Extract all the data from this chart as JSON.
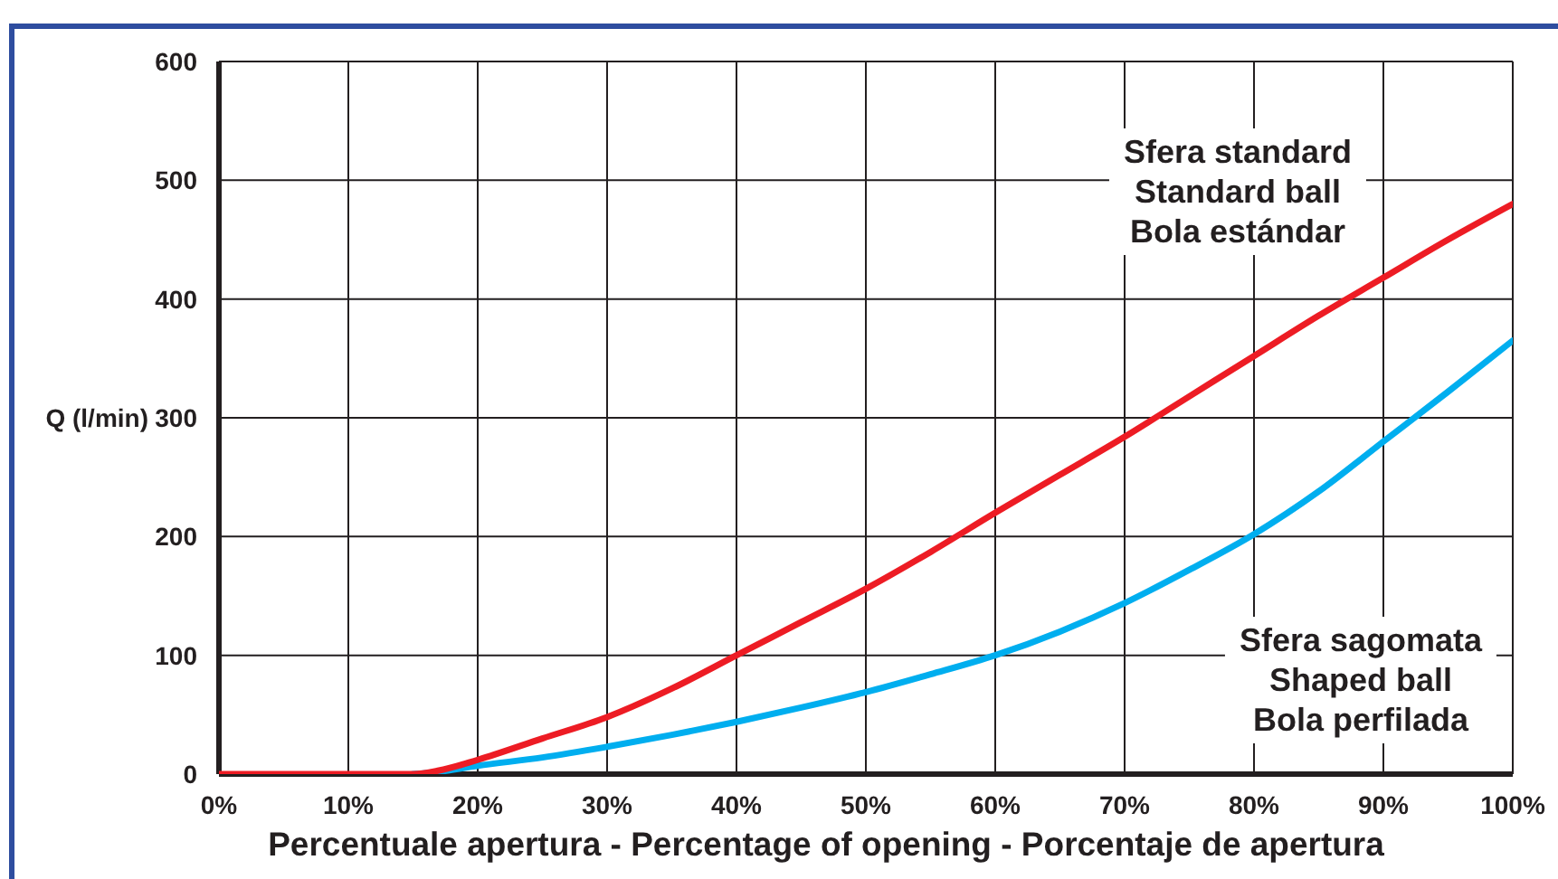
{
  "chart_data": {
    "type": "line",
    "xlabel": "Percentuale apertura - Percentage of opening - Porcentaje de apertura",
    "ylabel": "Q (l/min)",
    "x": [
      0,
      5,
      10,
      15,
      17,
      20,
      25,
      30,
      35,
      40,
      45,
      50,
      55,
      60,
      65,
      70,
      75,
      80,
      85,
      90,
      95,
      100
    ],
    "series": [
      {
        "name": "Sfera standard\nStandard ball\nBola estándar",
        "color": "#ed1c24",
        "values": [
          0,
          0,
          0,
          0,
          3,
          12,
          30,
          48,
          72,
          100,
          128,
          156,
          187,
          220,
          252,
          284,
          318,
          352,
          386,
          418,
          450,
          480
        ]
      },
      {
        "name": "Sfera sagomata\nShaped ball\nBola perfilada",
        "color": "#00aeef",
        "values": [
          null,
          null,
          null,
          0,
          2,
          7,
          14,
          23,
          33,
          44,
          56,
          69,
          84,
          100,
          120,
          144,
          172,
          202,
          238,
          280,
          322,
          365
        ]
      }
    ],
    "xlim": [
      0,
      100
    ],
    "xticks": [
      {
        "value": 0,
        "label": "0%"
      },
      {
        "value": 10,
        "label": "10%"
      },
      {
        "value": 20,
        "label": "20%"
      },
      {
        "value": 30,
        "label": "30%"
      },
      {
        "value": 40,
        "label": "40%"
      },
      {
        "value": 50,
        "label": "50%"
      },
      {
        "value": 60,
        "label": "60%"
      },
      {
        "value": 70,
        "label": "70%"
      },
      {
        "value": 80,
        "label": "80%"
      },
      {
        "value": 90,
        "label": "90%"
      },
      {
        "value": 100,
        "label": "100%"
      }
    ],
    "ylim": [
      0,
      600
    ],
    "yticks": [
      0,
      100,
      200,
      300,
      400,
      500,
      600
    ],
    "grid": true,
    "line_style": "solid"
  }
}
